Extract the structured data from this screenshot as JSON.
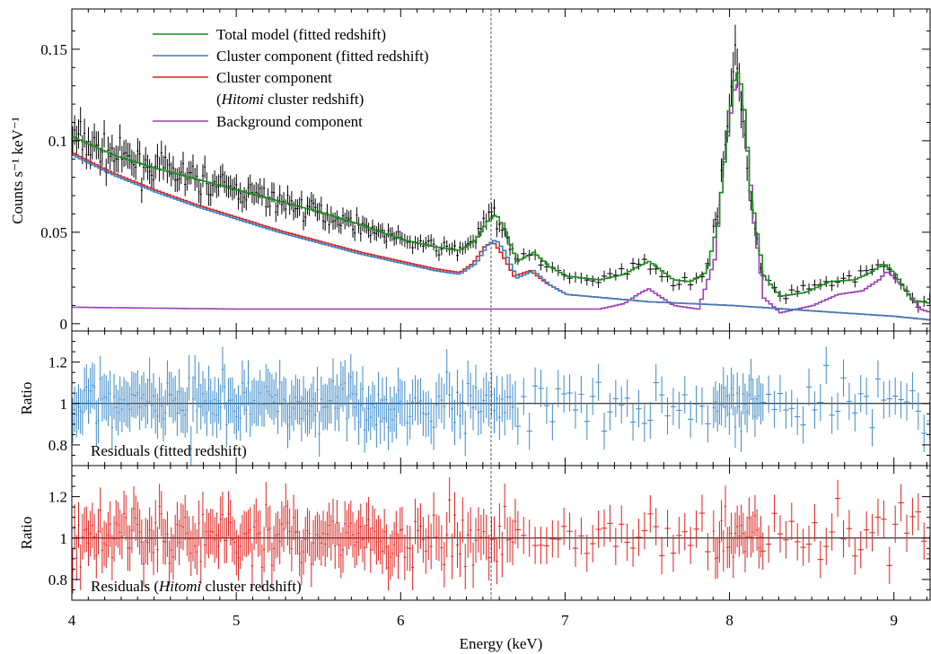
{
  "figure": {
    "xlabel": "Energy (keV)",
    "xlim": [
      4.0,
      9.22
    ],
    "x_ticks": [
      4,
      5,
      6,
      7,
      8,
      9
    ],
    "x_tick_labels": [
      "4",
      "5",
      "6",
      "7",
      "8",
      "9"
    ],
    "vline_energy": 6.55
  },
  "chart_data": [
    {
      "type": "line",
      "panel": "spectrum",
      "ylabel": "Counts s⁻¹ keV⁻¹",
      "ylim": [
        -0.004,
        0.172
      ],
      "y_ticks": [
        0,
        0.05,
        0.1,
        0.15
      ],
      "y_tick_labels": [
        "0",
        "0.05",
        "0.1",
        "0.15"
      ],
      "legend_position": "top-left",
      "legend": [
        {
          "label": "Total model (fitted redshift)",
          "color": "#1a8a1a"
        },
        {
          "label": "Cluster component (fitted redshift)",
          "color": "#3d7fbf"
        },
        {
          "label": "Cluster component",
          "label2_pre": " (",
          "label2_italic": "Hitomi",
          "label2_post": " cluster redshift)",
          "color": "#e0201c"
        },
        {
          "label": "Background component",
          "color": "#9b3fb5"
        }
      ],
      "series": [
        {
          "name": "Total model (fitted redshift)",
          "color": "#1a8a1a",
          "x": [
            4.0,
            4.25,
            4.5,
            4.75,
            5.0,
            5.25,
            5.5,
            5.75,
            6.0,
            6.2,
            6.35,
            6.45,
            6.52,
            6.57,
            6.62,
            6.7,
            6.8,
            6.9,
            7.0,
            7.2,
            7.35,
            7.45,
            7.5,
            7.55,
            7.65,
            7.75,
            7.85,
            7.92,
            7.98,
            8.03,
            8.07,
            8.12,
            8.2,
            8.3,
            8.45,
            8.6,
            8.75,
            8.85,
            8.93,
            9.0,
            9.1,
            9.22
          ],
          "y": [
            0.102,
            0.092,
            0.085,
            0.079,
            0.073,
            0.067,
            0.061,
            0.054,
            0.046,
            0.042,
            0.04,
            0.046,
            0.056,
            0.06,
            0.052,
            0.034,
            0.039,
            0.031,
            0.026,
            0.024,
            0.027,
            0.032,
            0.034,
            0.031,
            0.024,
            0.023,
            0.028,
            0.055,
            0.105,
            0.14,
            0.128,
            0.072,
            0.026,
            0.015,
            0.017,
            0.023,
            0.024,
            0.028,
            0.033,
            0.027,
            0.013,
            0.011
          ]
        },
        {
          "name": "Cluster component (fitted redshift)",
          "color": "#3d7fbf",
          "x": [
            4.0,
            4.25,
            4.5,
            4.75,
            5.0,
            5.25,
            5.5,
            5.75,
            6.0,
            6.2,
            6.35,
            6.45,
            6.52,
            6.57,
            6.62,
            6.7,
            6.8,
            6.9,
            7.0,
            7.5,
            8.0,
            8.5,
            9.0,
            9.22
          ],
          "y": [
            0.092,
            0.081,
            0.072,
            0.064,
            0.057,
            0.05,
            0.044,
            0.038,
            0.033,
            0.029,
            0.027,
            0.033,
            0.043,
            0.046,
            0.04,
            0.025,
            0.029,
            0.021,
            0.016,
            0.012,
            0.01,
            0.007,
            0.004,
            0.002
          ]
        },
        {
          "name": "Cluster component (Hitomi cluster redshift)",
          "color": "#e0201c",
          "x": [
            4.0,
            4.25,
            4.5,
            4.75,
            5.0,
            5.25,
            5.5,
            5.75,
            6.0,
            6.2,
            6.35,
            6.43,
            6.5,
            6.55,
            6.6,
            6.68,
            6.78,
            6.88,
            7.0,
            7.5,
            8.0,
            8.5,
            9.0,
            9.22
          ],
          "y": [
            0.093,
            0.082,
            0.073,
            0.065,
            0.058,
            0.051,
            0.045,
            0.039,
            0.034,
            0.03,
            0.028,
            0.033,
            0.042,
            0.045,
            0.039,
            0.026,
            0.029,
            0.022,
            0.016,
            0.012,
            0.01,
            0.007,
            0.004,
            0.002
          ]
        },
        {
          "name": "Background component",
          "color": "#9b3fb5",
          "x": [
            4.0,
            5.0,
            6.0,
            6.8,
            7.2,
            7.35,
            7.45,
            7.5,
            7.55,
            7.65,
            7.8,
            7.9,
            7.96,
            8.03,
            8.08,
            8.14,
            8.2,
            8.3,
            8.5,
            8.65,
            8.8,
            8.9,
            8.95,
            9.05,
            9.15,
            9.22
          ],
          "y": [
            0.009,
            0.008,
            0.008,
            0.008,
            0.008,
            0.011,
            0.017,
            0.019,
            0.016,
            0.01,
            0.008,
            0.035,
            0.09,
            0.134,
            0.117,
            0.055,
            0.014,
            0.006,
            0.01,
            0.016,
            0.018,
            0.024,
            0.029,
            0.02,
            0.008,
            0.006
          ]
        }
      ],
      "data_points": {
        "color": "#000000",
        "label": "Data",
        "count": 320,
        "x_range": [
          4.0,
          9.22
        ]
      }
    },
    {
      "type": "scatter",
      "panel": "residuals",
      "text": "Residuals (fitted redshift)",
      "ylabel": "Ratio",
      "ylim": [
        0.7,
        1.35
      ],
      "y_ticks": [
        0.8,
        1,
        1.2
      ],
      "y_tick_labels": [
        "0.8",
        "1",
        "1.2"
      ],
      "reference_line": 1,
      "color": "#3d8ac8",
      "count": 320,
      "x_range": [
        4.0,
        9.22
      ],
      "y_center": 1,
      "y_scatter": [
        0.78,
        1.25
      ]
    },
    {
      "type": "scatter",
      "panel": "residuals",
      "text_pre": "Residuals (",
      "text_italic": "Hitomi",
      "text_post": " cluster redshift)",
      "ylabel": "Ratio",
      "ylim": [
        0.7,
        1.35
      ],
      "y_ticks": [
        0.8,
        1,
        1.2
      ],
      "y_tick_labels": [
        "0.8",
        "1",
        "1.2"
      ],
      "reference_line": 1,
      "color": "#e0201c",
      "count": 320,
      "x_range": [
        4.0,
        9.22
      ],
      "y_center": 1,
      "y_scatter": [
        0.78,
        1.25
      ]
    }
  ]
}
